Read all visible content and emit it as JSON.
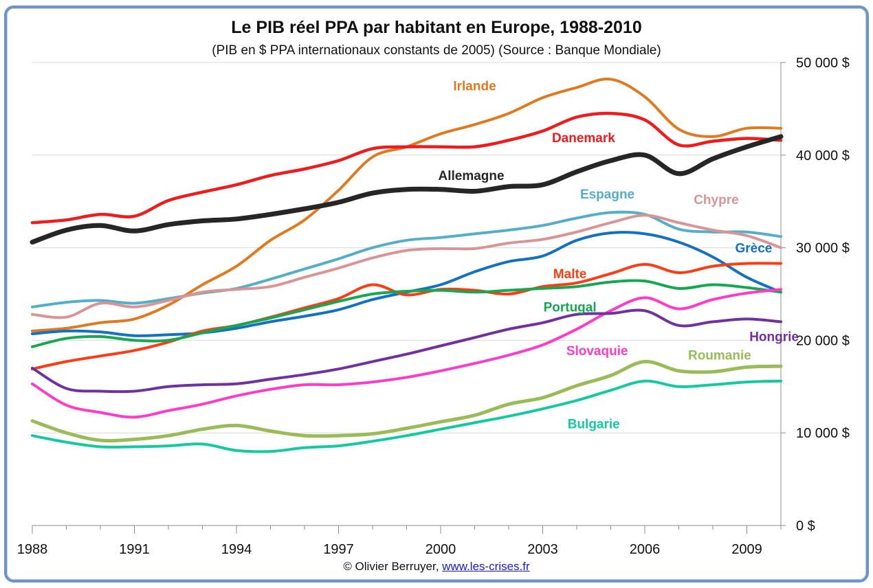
{
  "chart_data": {
    "type": "line",
    "title": "Le PIB réel PPA par habitant en Europe, 1988-2010",
    "subtitle": "(PIB en $ PPA internationaux constants de 2005) (Source : Banque Mondiale)",
    "credit": "© Olivier Berruyer,",
    "credit_link": "www.les-crises.fr",
    "x": [
      1988,
      1989,
      1990,
      1991,
      1992,
      1993,
      1994,
      1995,
      1996,
      1997,
      1998,
      1999,
      2000,
      2001,
      2002,
      2003,
      2004,
      2005,
      2006,
      2007,
      2008,
      2009,
      2010
    ],
    "x_ticks": [
      1988,
      1991,
      1994,
      1997,
      2000,
      2003,
      2006,
      2009
    ],
    "x_tick_labels": [
      "1988",
      "1991",
      "1994",
      "1997",
      "2000",
      "2003",
      "2006",
      "2009"
    ],
    "xlim": [
      1988,
      2010
    ],
    "ylim": [
      0,
      50000
    ],
    "y_ticks": [
      0,
      10000,
      20000,
      30000,
      40000,
      50000
    ],
    "y_tick_labels": [
      "0 $",
      "10 000 $",
      "20 000 $",
      "30 000 $",
      "40 000 $",
      "50 000 $"
    ],
    "y_axis_side": "right",
    "grid": true,
    "series": [
      {
        "name": "Irlande",
        "color": "#e07a20",
        "width": 4,
        "values": [
          21000,
          21300,
          21900,
          22300,
          23800,
          26000,
          28000,
          30800,
          33000,
          36200,
          39800,
          40900,
          42300,
          43300,
          44500,
          46200,
          47300,
          48200,
          46300,
          42800,
          42000,
          42900,
          42900
        ]
      },
      {
        "name": "Danemark",
        "color": "#ee1c1c",
        "width": 4.5,
        "values": [
          32700,
          33000,
          33600,
          33400,
          35100,
          36000,
          36800,
          37800,
          38500,
          39400,
          40700,
          40900,
          40900,
          40900,
          41600,
          42600,
          44100,
          44500,
          43800,
          41100,
          41500,
          41800,
          41600
        ]
      },
      {
        "name": "Allemagne",
        "color": "#262626",
        "width": 7,
        "values": [
          30600,
          31900,
          32400,
          31800,
          32500,
          32900,
          33100,
          33600,
          34200,
          34900,
          35900,
          36300,
          36300,
          36100,
          36600,
          36800,
          38200,
          39400,
          40000,
          38000,
          39600,
          40900,
          42000
        ]
      },
      {
        "name": "Espagne",
        "color": "#55aec8",
        "width": 4,
        "values": [
          23600,
          24100,
          24300,
          24000,
          24500,
          25100,
          25600,
          26600,
          27700,
          28800,
          30000,
          30800,
          31100,
          31500,
          31900,
          32400,
          33200,
          33800,
          33600,
          32000,
          31700,
          31700,
          31200
        ]
      },
      {
        "name": "Chypre",
        "color": "#d99595",
        "width": 4,
        "values": [
          22800,
          22500,
          24000,
          23600,
          24300,
          25200,
          25500,
          25800,
          26800,
          27800,
          28900,
          29700,
          29900,
          29900,
          30500,
          30900,
          31700,
          32700,
          33500,
          32700,
          31900,
          31300,
          30000
        ]
      },
      {
        "name": "Grèce",
        "color": "#1470c0",
        "width": 4,
        "values": [
          20700,
          21000,
          20900,
          20500,
          20600,
          20800,
          21300,
          22000,
          22600,
          23300,
          24400,
          25200,
          26000,
          27400,
          28500,
          29100,
          30800,
          31600,
          31500,
          30600,
          29000,
          26800,
          25200
        ]
      },
      {
        "name": "Malte",
        "color": "#ff3c14",
        "width": 4,
        "values": [
          16900,
          17700,
          18300,
          18900,
          19800,
          21000,
          21600,
          22500,
          23500,
          24500,
          26000,
          24900,
          25500,
          25400,
          25000,
          25800,
          26200,
          27200,
          28200,
          27300,
          28000,
          28300,
          28300
        ]
      },
      {
        "name": "Portugal",
        "color": "#16a850",
        "width": 4,
        "values": [
          19300,
          20200,
          20400,
          20000,
          20000,
          20800,
          21600,
          22400,
          23300,
          24200,
          25000,
          25300,
          25400,
          25200,
          25400,
          25600,
          25800,
          26300,
          26400,
          25600,
          26000,
          25700,
          25200
        ]
      },
      {
        "name": "Slovaquie",
        "color": "#ff3cc8",
        "width": 4,
        "values": [
          15300,
          13000,
          12200,
          11700,
          12400,
          13100,
          14000,
          14700,
          15200,
          15200,
          15500,
          16000,
          16700,
          17500,
          18400,
          19500,
          21200,
          23200,
          24600,
          23400,
          24400,
          25100,
          25500
        ]
      },
      {
        "name": "Hongrie",
        "color": "#7030a0",
        "width": 4,
        "values": [
          17000,
          14800,
          14500,
          14500,
          15000,
          15200,
          15300,
          15800,
          16300,
          16900,
          17700,
          18500,
          19400,
          20300,
          21200,
          21900,
          22800,
          22900,
          23200,
          21600,
          22000,
          22300,
          22000
        ]
      },
      {
        "name": "Roumanie",
        "color": "#9bbb59",
        "width": 5,
        "values": [
          11300,
          10000,
          9200,
          9300,
          9700,
          10400,
          10800,
          10200,
          9700,
          9700,
          9900,
          10500,
          11200,
          11900,
          13100,
          13800,
          15100,
          16200,
          17700,
          16700,
          16600,
          17100,
          17200
        ]
      },
      {
        "name": "Bulgarie",
        "color": "#14c8a0",
        "width": 4,
        "values": [
          9700,
          9000,
          8500,
          8500,
          8600,
          8800,
          8100,
          8000,
          8400,
          8600,
          9100,
          9700,
          10400,
          11100,
          11800,
          12600,
          13500,
          14600,
          15600,
          15000,
          15200,
          15500,
          15600
        ]
      }
    ],
    "labels": [
      {
        "series": "Irlande",
        "x": 2001.0,
        "y": 47000
      },
      {
        "series": "Danemark",
        "x": 2004.2,
        "y": 41400
      },
      {
        "series": "Allemagne",
        "x": 2000.9,
        "y": 37300
      },
      {
        "series": "Espagne",
        "x": 2004.9,
        "y": 35300
      },
      {
        "series": "Chypre",
        "x": 2008.1,
        "y": 34700
      },
      {
        "series": "Grèce",
        "x": 2009.2,
        "y": 29500
      },
      {
        "series": "Malte",
        "x": 2003.8,
        "y": 26700
      },
      {
        "series": "Portugal",
        "x": 2003.8,
        "y": 23100
      },
      {
        "series": "Slovaquie",
        "x": 2004.6,
        "y": 18400
      },
      {
        "series": "Hongrie",
        "x": 2009.8,
        "y": 19900
      },
      {
        "series": "Roumanie",
        "x": 2008.2,
        "y": 17900
      },
      {
        "series": "Bulgarie",
        "x": 2004.5,
        "y": 10500
      }
    ]
  }
}
